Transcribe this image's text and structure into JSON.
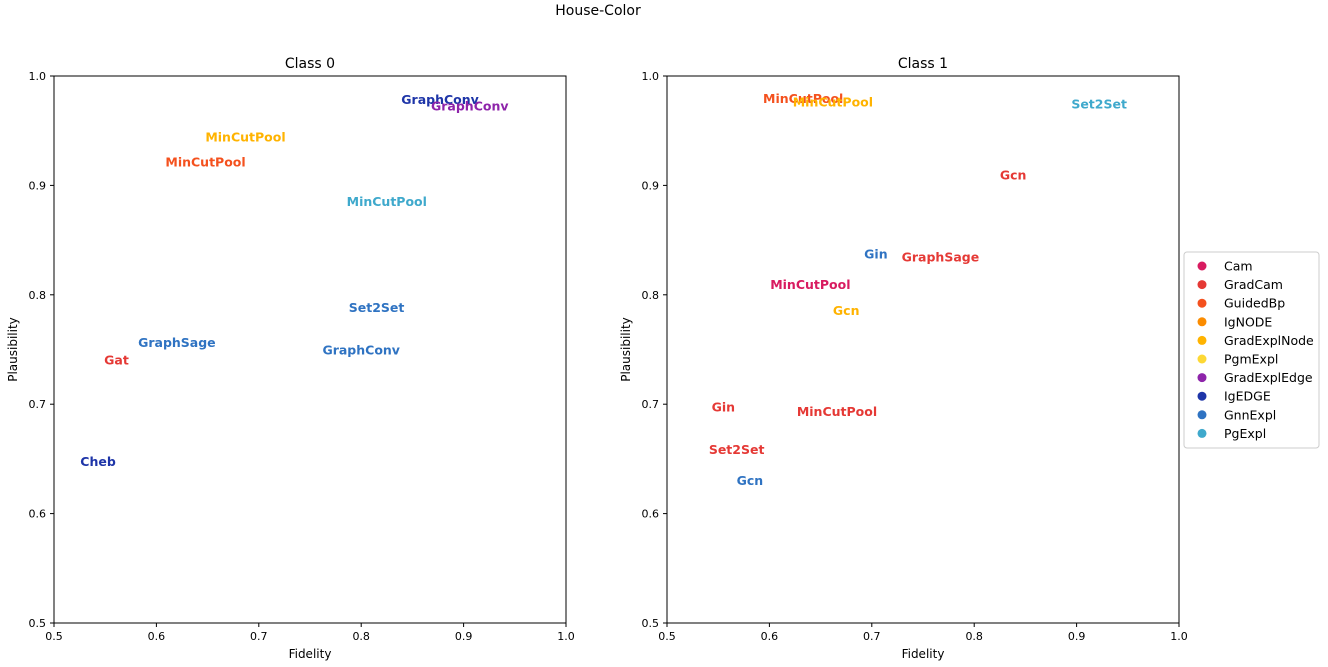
{
  "suptitle": "House-Color",
  "colors": {
    "Cam": "#d81b60",
    "GradCam": "#e53935",
    "GuidedBp": "#f4511e",
    "IgNODE": "#fb8c00",
    "GradExplNode": "#ffb300",
    "PgmExpl": "#fdd835",
    "GradExplEdge": "#8e24aa",
    "IgEDGE": "#1e35a8",
    "GnnExpl": "#2f73c2",
    "PgExpl": "#3fa9cc"
  },
  "legend": {
    "entries": [
      "Cam",
      "GradCam",
      "GuidedBp",
      "IgNODE",
      "GradExplNode",
      "PgmExpl",
      "GradExplEdge",
      "IgEDGE",
      "GnnExpl",
      "PgExpl"
    ]
  },
  "chart_data": [
    {
      "type": "scatter",
      "title": "Class 0",
      "xlabel": "Fidelity",
      "ylabel": "Plausibility",
      "xlim": [
        0.5,
        1.0
      ],
      "ylim": [
        0.5,
        1.0
      ],
      "xticks": [
        "0.5",
        "0.6",
        "0.7",
        "0.8",
        "0.9",
        "1.0"
      ],
      "yticks": [
        "0.5",
        "0.6",
        "0.7",
        "0.8",
        "0.9",
        "1.0"
      ],
      "grid": false,
      "points": [
        {
          "label": "GraphConv",
          "method": "IgEDGE",
          "x": 0.877,
          "y": 0.978
        },
        {
          "label": "GraphConv",
          "method": "GradExplEdge",
          "x": 0.906,
          "y": 0.972
        },
        {
          "label": "MinCutPool",
          "method": "GradExplNode",
          "x": 0.687,
          "y": 0.944
        },
        {
          "label": "MinCutPool",
          "method": "GuidedBp",
          "x": 0.648,
          "y": 0.921
        },
        {
          "label": "MinCutPool",
          "method": "PgExpl",
          "x": 0.825,
          "y": 0.885
        },
        {
          "label": "Set2Set",
          "method": "GnnExpl",
          "x": 0.815,
          "y": 0.788
        },
        {
          "label": "GraphSage",
          "method": "GnnExpl",
          "x": 0.62,
          "y": 0.756
        },
        {
          "label": "GraphConv",
          "method": "GnnExpl",
          "x": 0.8,
          "y": 0.749
        },
        {
          "label": "Gat",
          "method": "GradCam",
          "x": 0.561,
          "y": 0.74
        },
        {
          "label": "Cheb",
          "method": "IgEDGE",
          "x": 0.543,
          "y": 0.647
        }
      ]
    },
    {
      "type": "scatter",
      "title": "Class 1",
      "xlabel": "Fidelity",
      "ylabel": "Plausibility",
      "xlim": [
        0.5,
        1.0
      ],
      "ylim": [
        0.5,
        1.0
      ],
      "xticks": [
        "0.5",
        "0.6",
        "0.7",
        "0.8",
        "0.9",
        "1.0"
      ],
      "yticks": [
        "0.5",
        "0.6",
        "0.7",
        "0.8",
        "0.9",
        "1.0"
      ],
      "grid": false,
      "points": [
        {
          "label": "MinCutPool",
          "method": "GuidedBp",
          "x": 0.633,
          "y": 0.979
        },
        {
          "label": "MinCutPool",
          "method": "GradExplNode",
          "x": 0.662,
          "y": 0.976
        },
        {
          "label": "Set2Set",
          "method": "PgExpl",
          "x": 0.922,
          "y": 0.974
        },
        {
          "label": "Gcn",
          "method": "GradCam",
          "x": 0.838,
          "y": 0.909
        },
        {
          "label": "Gin",
          "method": "GnnExpl",
          "x": 0.704,
          "y": 0.837
        },
        {
          "label": "GraphSage",
          "method": "GradCam",
          "x": 0.767,
          "y": 0.834
        },
        {
          "label": "MinCutPool",
          "method": "Cam",
          "x": 0.64,
          "y": 0.809
        },
        {
          "label": "Gcn",
          "method": "GradExplNode",
          "x": 0.675,
          "y": 0.785
        },
        {
          "label": "Gin",
          "method": "GradCam",
          "x": 0.555,
          "y": 0.697
        },
        {
          "label": "MinCutPool",
          "method": "GradCam",
          "x": 0.666,
          "y": 0.693
        },
        {
          "label": "Set2Set",
          "method": "GradCam",
          "x": 0.568,
          "y": 0.658
        },
        {
          "label": "Gcn",
          "method": "GnnExpl",
          "x": 0.581,
          "y": 0.63
        }
      ]
    }
  ]
}
